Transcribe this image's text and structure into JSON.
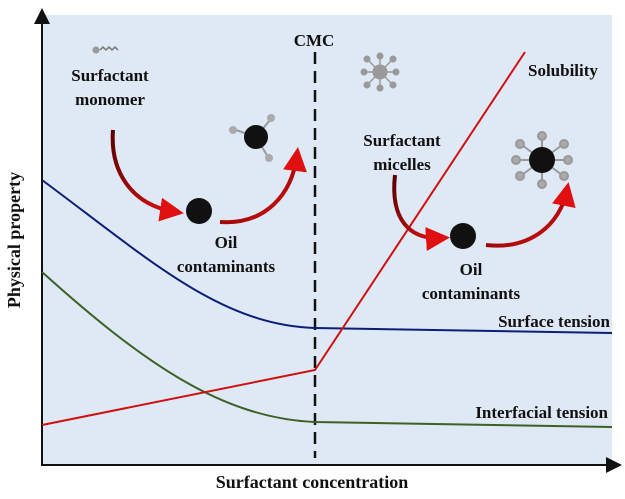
{
  "axes": {
    "x_label": "Surfactant concentration",
    "y_label": "Physical property"
  },
  "labels": {
    "cmc": "CMC",
    "solubility": "Solubility",
    "surface_tension": "Surface tension",
    "interfacial_tension": "Interfacial tension"
  },
  "annotations": [
    {
      "lines": [
        "Surfactant",
        "monomer"
      ]
    },
    {
      "lines": [
        "Oil",
        "contaminants"
      ]
    },
    {
      "lines": [
        "Surfactant",
        "micelles"
      ]
    },
    {
      "lines": [
        "Oil",
        "contaminants"
      ]
    }
  ]
}
